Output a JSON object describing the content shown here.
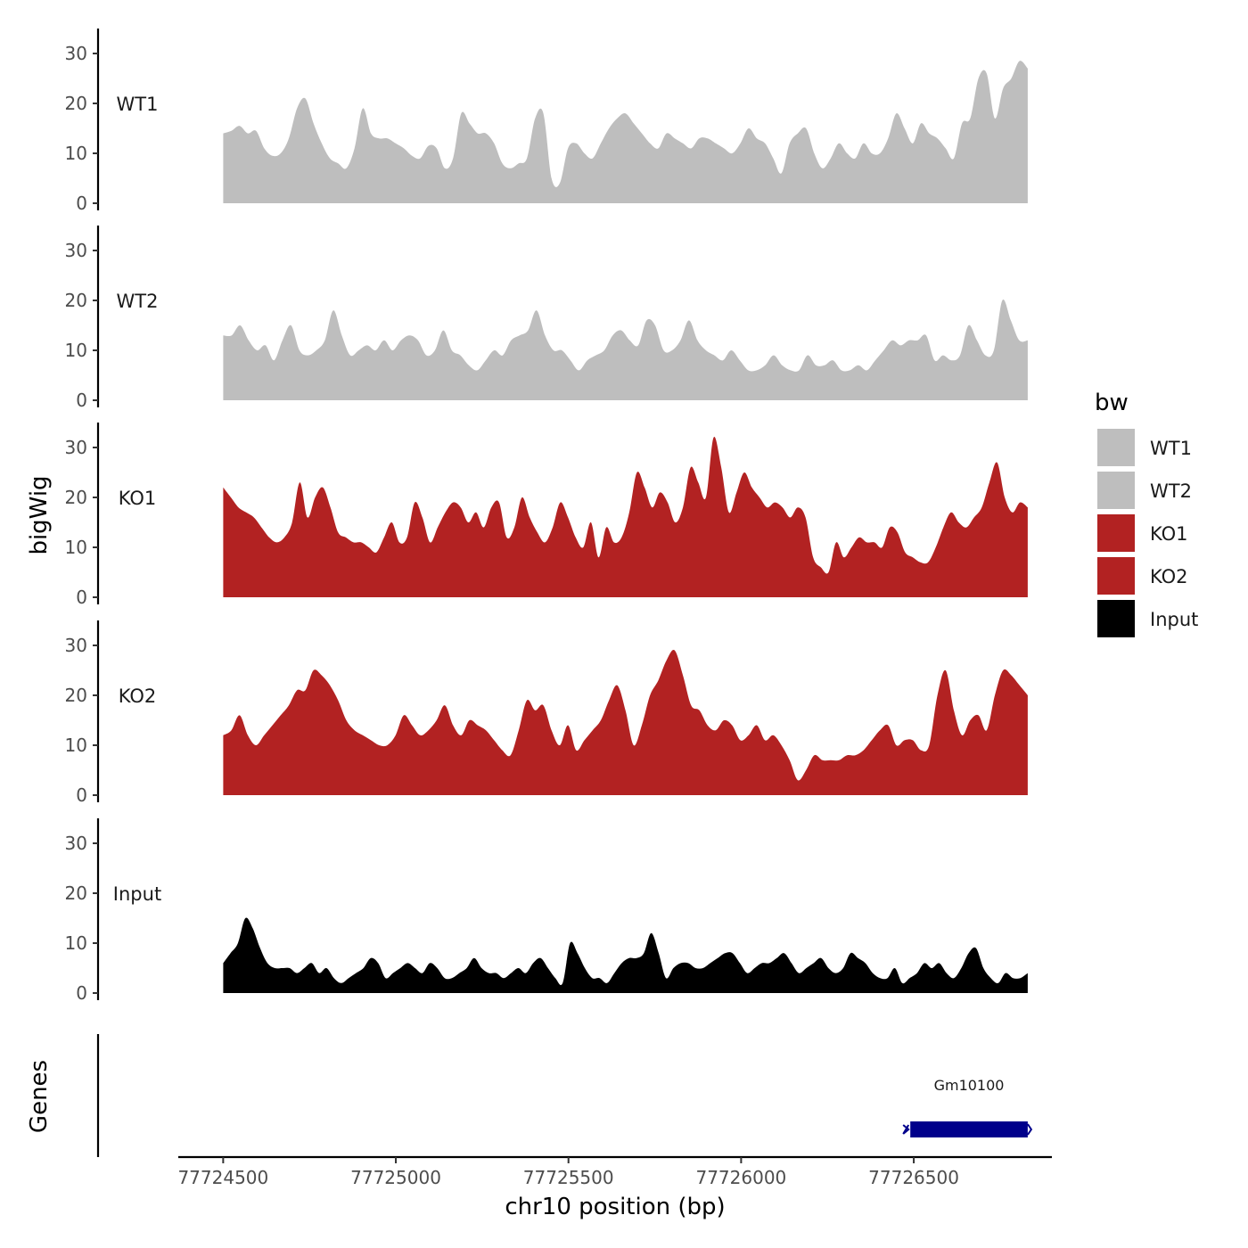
{
  "chart_data": {
    "type": "area",
    "ylabel": "bigWig",
    "xlabel": "chr10 position (bp)",
    "xlim": [
      77724370,
      77726900
    ],
    "x_ticks": [
      77724500,
      77725000,
      77725500,
      77726000,
      77726500
    ],
    "x_tick_labels": [
      "77724500",
      "77725000",
      "77725500",
      "77726000",
      "77726500"
    ],
    "ylim": [
      0,
      35
    ],
    "y_ticks": [
      0,
      10,
      20,
      30
    ],
    "y_tick_labels": [
      "0",
      "10",
      "20",
      "30"
    ],
    "track_x_start": 77724500,
    "track_x_end": 77726830,
    "legend": {
      "title": "bw",
      "placement": "right",
      "entries": [
        {
          "label": "WT1",
          "color": "#bebebe"
        },
        {
          "label": "WT2",
          "color": "#bebebe"
        },
        {
          "label": "KO1",
          "color": "#b22222"
        },
        {
          "label": "KO2",
          "color": "#b22222"
        },
        {
          "label": "Input",
          "color": "#000000"
        }
      ]
    },
    "series": [
      {
        "name": "WT1",
        "color": "#bebebe",
        "values": [
          14,
          14.5,
          15.5,
          14,
          14.5,
          11,
          9.5,
          10,
          13,
          19,
          21,
          16,
          12,
          9,
          8,
          7,
          11,
          19,
          14,
          13,
          13,
          12,
          11,
          9.5,
          9,
          11.5,
          11,
          7,
          9,
          18,
          16,
          14,
          14,
          12,
          8,
          7,
          8,
          9,
          17,
          18,
          5,
          4,
          11,
          12,
          10,
          9,
          12,
          15,
          17,
          18,
          16,
          14,
          12,
          11,
          14,
          13,
          12,
          11,
          13,
          13,
          12,
          11,
          10,
          12,
          15,
          13,
          12,
          9,
          6,
          12,
          14,
          15,
          10,
          7,
          9,
          12,
          10,
          9,
          12,
          10,
          10,
          13,
          18,
          15,
          12,
          16,
          14,
          13,
          11,
          9,
          16,
          17,
          25,
          26,
          17,
          23,
          25,
          28.5,
          27
        ]
      },
      {
        "name": "WT2",
        "color": "#bebebe",
        "values": [
          13,
          13,
          15,
          12,
          10,
          11,
          8,
          12,
          15,
          10,
          9,
          10,
          12,
          18,
          13,
          9,
          10,
          11,
          10,
          12,
          10,
          12,
          13,
          12,
          9,
          10,
          14,
          10,
          9,
          7,
          6,
          8,
          10,
          9,
          12,
          13,
          14,
          18,
          13,
          10,
          10,
          8,
          6,
          8,
          9,
          10,
          13,
          14,
          12,
          11,
          16,
          15,
          10,
          10,
          12,
          16,
          12,
          10,
          9,
          8,
          10,
          8,
          6,
          6,
          7,
          9,
          7,
          6,
          6,
          9,
          7,
          7,
          8,
          6,
          6,
          7,
          6,
          8,
          10,
          12,
          11,
          12,
          12,
          13,
          8,
          9,
          8,
          9,
          15,
          12,
          9,
          10,
          20,
          16,
          12,
          12
        ]
      },
      {
        "name": "KO1",
        "color": "#b22222",
        "values": [
          22,
          20,
          18,
          17,
          16,
          14,
          12,
          11,
          12,
          15,
          23,
          16,
          20,
          22,
          18,
          13,
          12,
          11,
          11,
          10,
          9,
          12,
          15,
          11,
          12,
          19,
          16,
          11,
          14,
          17,
          19,
          18,
          15,
          17,
          14,
          18,
          19,
          12,
          14,
          20,
          16,
          13,
          11,
          14,
          19,
          16,
          12,
          10,
          15,
          8,
          14,
          11,
          12,
          17,
          25,
          22,
          18,
          21,
          19,
          15,
          18,
          26,
          23,
          20,
          32,
          26,
          17,
          21,
          25,
          22,
          20,
          18,
          19,
          18,
          16,
          18,
          16,
          8,
          6,
          5,
          11,
          8,
          10,
          12,
          11,
          11,
          10,
          14,
          13,
          9,
          8,
          7,
          7,
          10,
          14,
          17,
          15,
          14,
          16,
          18,
          23,
          27,
          20,
          17,
          19,
          18
        ]
      },
      {
        "name": "KO2",
        "color": "#b22222",
        "values": [
          12,
          13,
          16,
          12,
          10,
          12,
          14,
          16,
          18,
          21,
          21,
          25,
          24,
          22,
          19,
          15,
          13,
          12,
          11,
          10,
          10,
          12,
          16,
          14,
          12,
          13,
          15,
          18,
          14,
          12,
          15,
          14,
          13,
          11,
          9,
          8,
          13,
          19,
          17,
          18,
          13,
          10,
          14,
          9,
          11,
          13,
          15,
          19,
          22,
          17,
          10,
          14,
          20,
          23,
          27,
          29,
          24,
          18,
          17,
          14,
          13,
          15,
          14,
          11,
          12,
          14,
          11,
          12,
          10,
          7,
          3,
          5,
          8,
          7,
          7,
          7,
          8,
          8,
          9,
          11,
          13,
          14,
          10,
          11,
          11,
          9,
          10,
          20,
          25,
          17,
          12,
          15,
          16,
          13,
          20,
          25,
          24,
          22,
          20
        ]
      },
      {
        "name": "Input",
        "color": "#000000",
        "values": [
          6,
          8,
          10,
          15,
          13,
          9,
          6,
          5,
          5,
          5,
          4,
          5,
          6,
          4,
          5,
          3,
          2,
          3,
          4,
          5,
          7,
          6,
          3,
          4,
          5,
          6,
          5,
          4,
          6,
          5,
          3,
          3,
          4,
          5,
          7,
          5,
          4,
          4,
          3,
          4,
          5,
          4,
          6,
          7,
          5,
          3,
          2,
          10,
          8,
          5,
          3,
          3,
          2,
          4,
          6,
          7,
          7,
          8,
          12,
          8,
          3,
          5,
          6,
          6,
          5,
          5,
          6,
          7,
          8,
          8,
          6,
          4,
          5,
          6,
          6,
          7,
          8,
          6,
          4,
          5,
          6,
          7,
          5,
          4,
          5,
          8,
          7,
          6,
          4,
          3,
          3,
          5,
          2,
          3,
          4,
          6,
          5,
          6,
          4,
          3,
          5,
          8,
          9,
          5,
          3,
          2,
          4,
          3,
          3,
          4
        ]
      }
    ],
    "genes": {
      "ylabel": "Genes",
      "items": [
        {
          "name": "Gm10100",
          "start": 77726490,
          "end": 77726830,
          "strand": "+",
          "color": "#00008b"
        }
      ]
    }
  }
}
